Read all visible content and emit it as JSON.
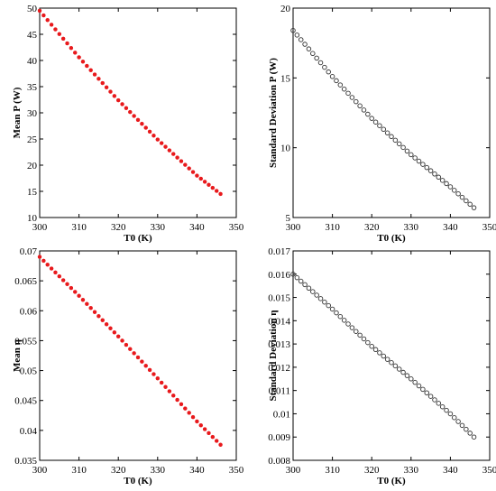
{
  "chart_data": [
    {
      "type": "scatter",
      "title": "",
      "xlabel": "T0 (K)",
      "ylabel": "Mean P (W)",
      "xlim": [
        300,
        350
      ],
      "ylim": [
        10,
        50
      ],
      "xticks": [
        300,
        310,
        320,
        330,
        340,
        350
      ],
      "yticks": [
        10,
        15,
        20,
        25,
        30,
        35,
        40,
        45,
        50
      ],
      "tick_labels_x": [
        "300",
        "310",
        "320",
        "330",
        "340",
        "350"
      ],
      "tick_labels_y": [
        "10",
        "15",
        "20",
        "25",
        "30",
        "35",
        "40",
        "45",
        "50"
      ],
      "marker": "filled-dot",
      "color": "#e8191c",
      "grid": false,
      "series": [
        {
          "x_start": 300,
          "x_end": 346,
          "x_step": 1,
          "y_at": {
            "300": 49.5,
            "310": 40.6,
            "320": 32.4,
            "330": 24.9,
            "340": 18.0,
            "346": 14.5
          }
        }
      ]
    },
    {
      "type": "scatter",
      "title": "",
      "xlabel": "T0 (K)",
      "ylabel": "Standard Deviation P (W)",
      "xlim": [
        300,
        350
      ],
      "ylim": [
        5,
        20
      ],
      "xticks": [
        300,
        310,
        320,
        330,
        340,
        350
      ],
      "yticks": [
        5,
        10,
        15,
        20
      ],
      "tick_labels_x": [
        "300",
        "310",
        "320",
        "330",
        "340",
        "350"
      ],
      "tick_labels_y": [
        "5",
        "10",
        "15",
        "20"
      ],
      "marker": "open-circle",
      "color": "#333333",
      "grid": false,
      "series": [
        {
          "x_start": 300,
          "x_end": 346,
          "x_step": 1,
          "y_at": {
            "300": 18.4,
            "310": 15.1,
            "320": 12.1,
            "330": 9.5,
            "340": 7.2,
            "346": 5.7
          }
        }
      ]
    },
    {
      "type": "scatter",
      "title": "",
      "xlabel": "T0 (K)",
      "ylabel": "Mean η",
      "xlim": [
        300,
        350
      ],
      "ylim": [
        0.035,
        0.07
      ],
      "xticks": [
        300,
        310,
        320,
        330,
        340,
        350
      ],
      "yticks": [
        0.035,
        0.04,
        0.045,
        0.05,
        0.055,
        0.06,
        0.065,
        0.07
      ],
      "tick_labels_x": [
        "300",
        "310",
        "320",
        "330",
        "340",
        "350"
      ],
      "tick_labels_y": [
        "0.035",
        "0.04",
        "0.045",
        "0.05",
        "0.055",
        "0.06",
        "0.065",
        "0.07"
      ],
      "marker": "filled-dot",
      "color": "#e8191c",
      "grid": false,
      "series": [
        {
          "x_start": 300,
          "x_end": 346,
          "x_step": 1,
          "y_at": {
            "300": 0.069,
            "310": 0.0625,
            "320": 0.0557,
            "330": 0.0487,
            "340": 0.0415,
            "346": 0.0376
          }
        }
      ]
    },
    {
      "type": "scatter",
      "title": "",
      "xlabel": "T0 (K)",
      "ylabel": "Standard Deviation η",
      "xlim": [
        300,
        350
      ],
      "ylim": [
        0.008,
        0.017
      ],
      "xticks": [
        300,
        310,
        320,
        330,
        340,
        350
      ],
      "yticks": [
        0.008,
        0.009,
        0.01,
        0.011,
        0.012,
        0.013,
        0.014,
        0.015,
        0.016,
        0.017
      ],
      "tick_labels_x": [
        "300",
        "310",
        "320",
        "330",
        "340",
        "350"
      ],
      "tick_labels_y": [
        "0.008",
        "0.009",
        "0.01",
        "0.011",
        "0.012",
        "0.013",
        "0.014",
        "0.015",
        "0.016",
        "0.017"
      ],
      "marker": "open-circle",
      "color": "#333333",
      "grid": false,
      "series": [
        {
          "x_start": 300,
          "x_end": 346,
          "x_step": 1,
          "y_at": {
            "300": 0.016,
            "310": 0.0145,
            "320": 0.0129,
            "330": 0.0115,
            "340": 0.01,
            "346": 0.009
          }
        }
      ]
    }
  ]
}
